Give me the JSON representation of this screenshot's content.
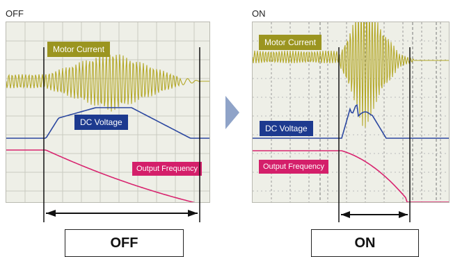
{
  "panels": {
    "off": {
      "title": "OFF",
      "box_label": "OFF",
      "labels": {
        "motor": "Motor Current",
        "dc": "DC Voltage",
        "freq": "Output Frequency"
      }
    },
    "on": {
      "title": "ON",
      "box_label": "ON",
      "labels": {
        "motor": "Motor Current",
        "dc": "DC Voltage",
        "freq": "Output Frequency"
      }
    }
  },
  "colors": {
    "motor": "#b3a726",
    "motor_label": "#9b9520",
    "dc": "#2b47a0",
    "dc_label": "#1d3a8f",
    "freq": "#d8246f",
    "freq_label": "#d41f6a",
    "arrow": "#8fa3c8"
  }
}
